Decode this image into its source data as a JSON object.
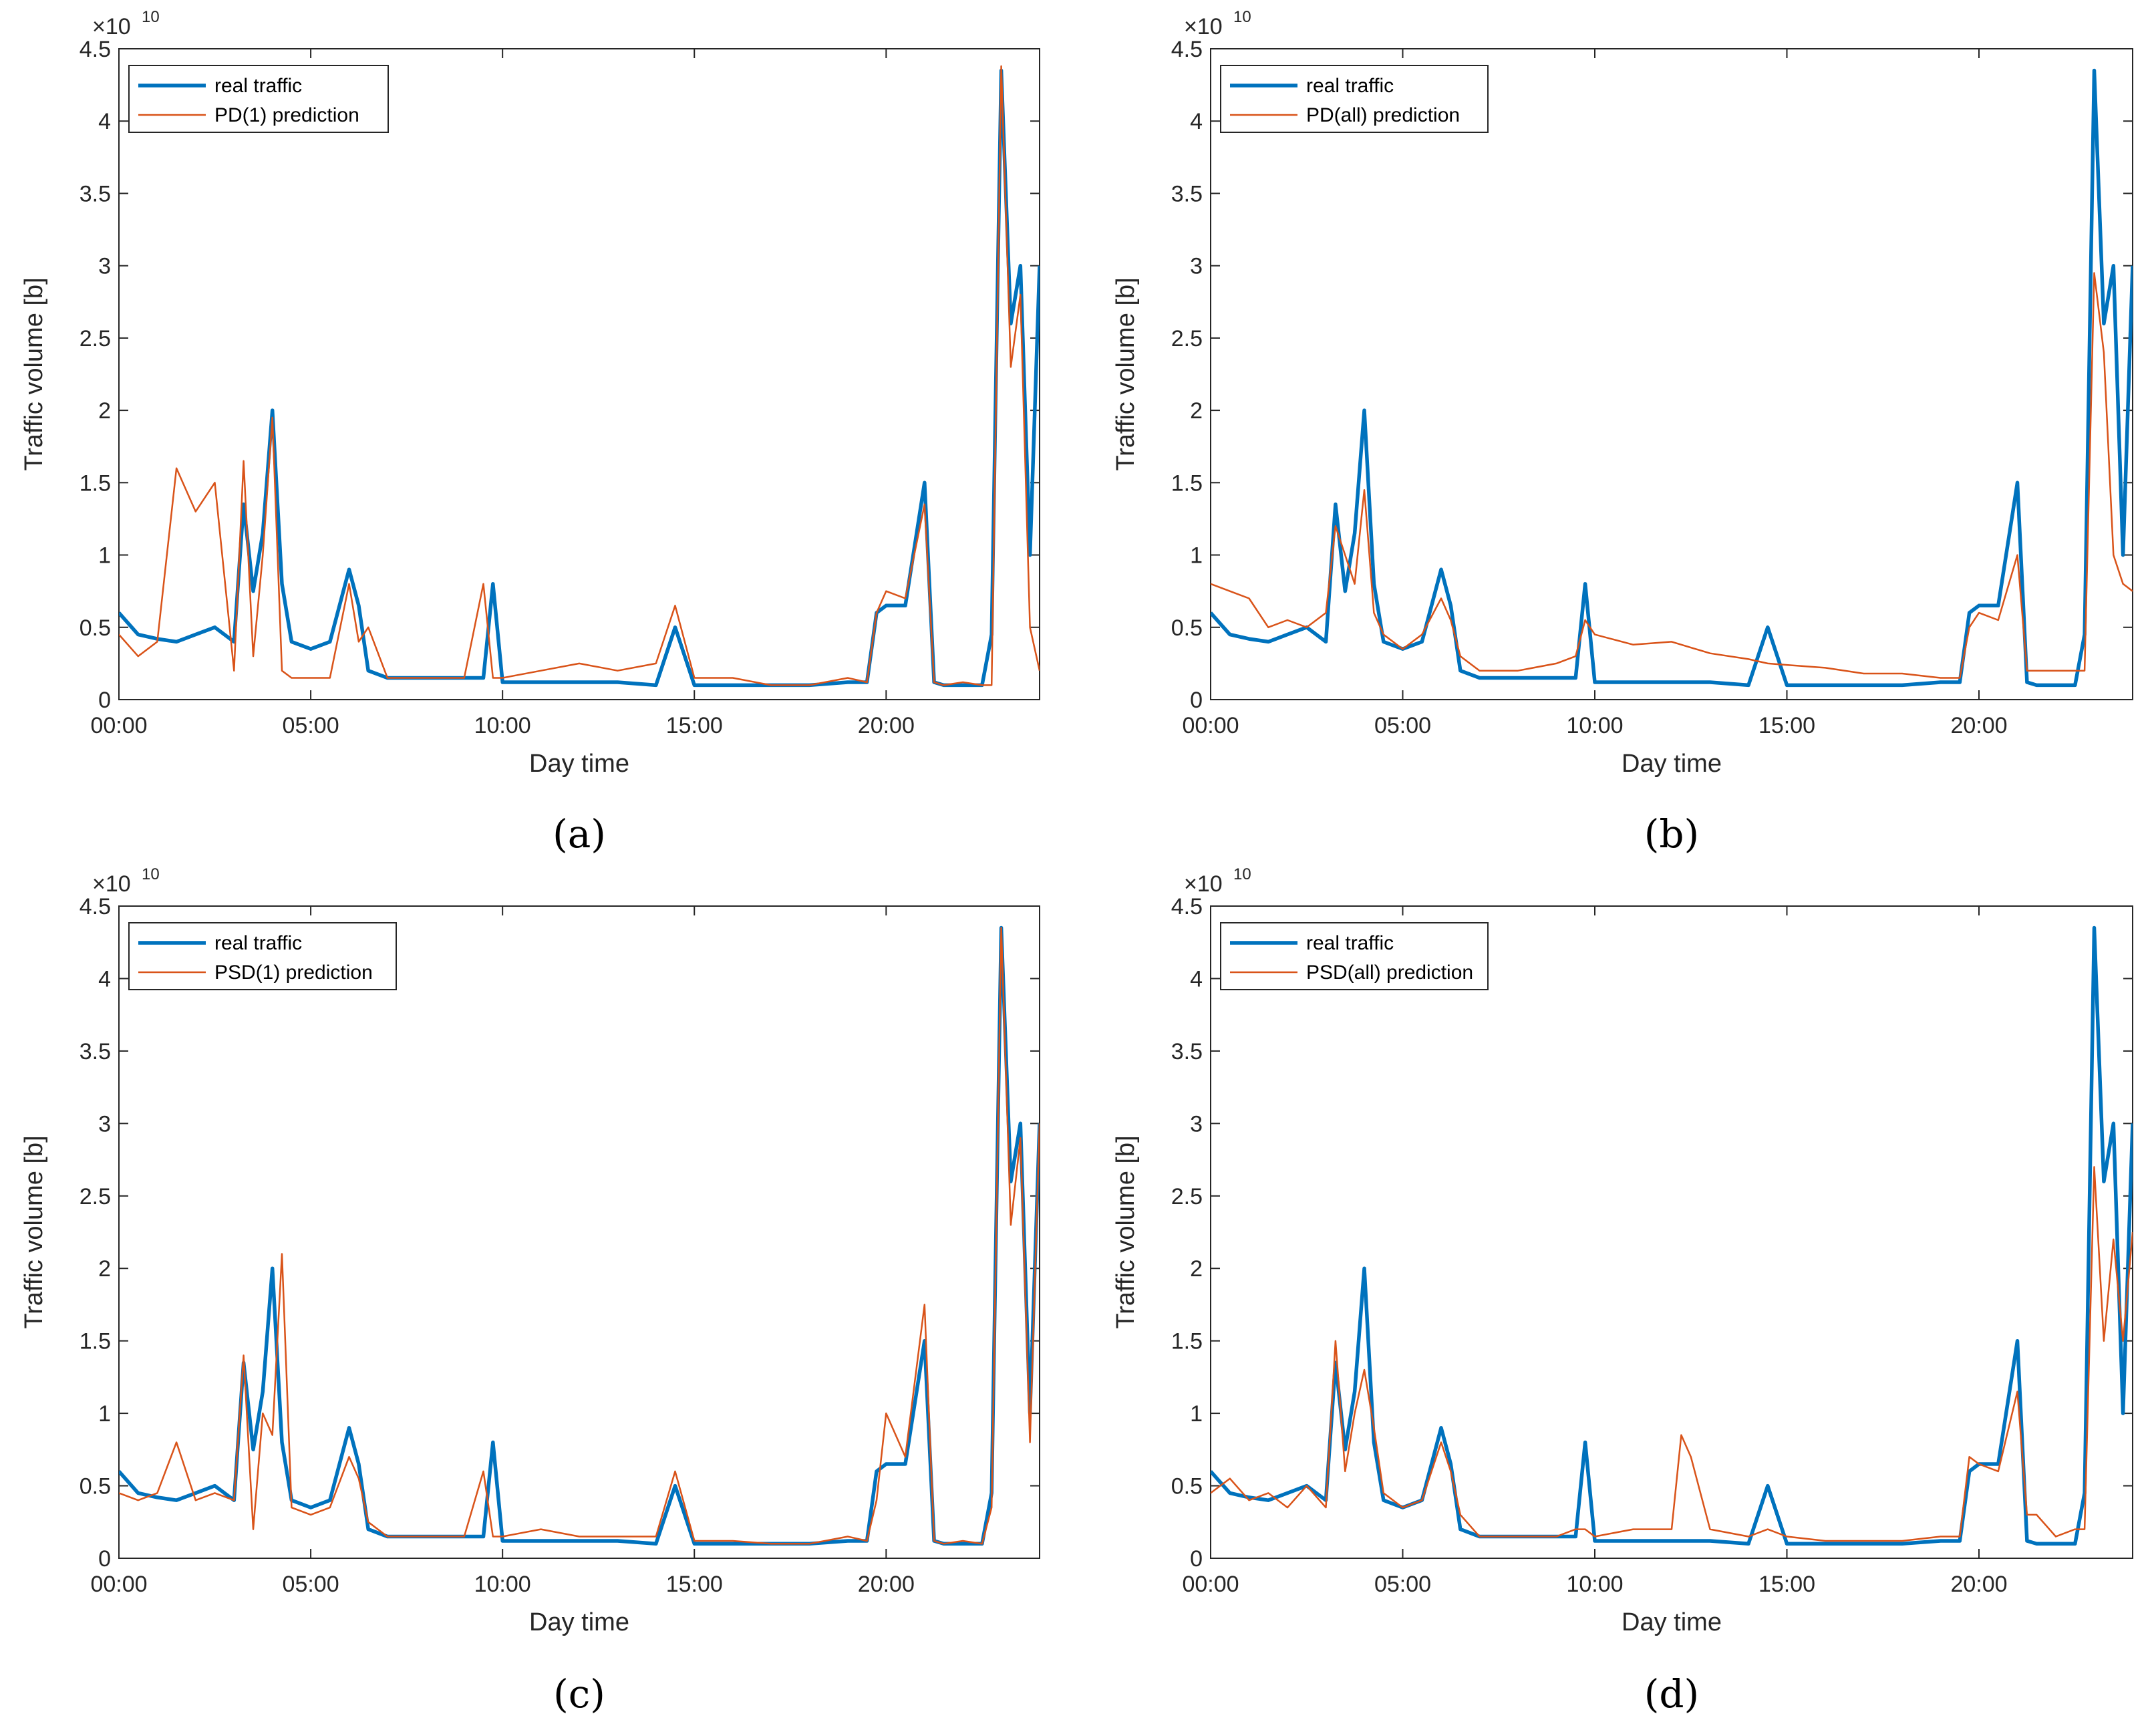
{
  "colors": {
    "real": "#0072BD",
    "pred": "#D95319",
    "axis": "#262626"
  },
  "chart_data": [
    {
      "type": "line",
      "panel_label": "(a)",
      "panel_letter": "a",
      "xlabel": "Day time",
      "ylabel": "Traffic volume [b]",
      "exponent_base": "×10",
      "exponent_power": "10",
      "xlim": [
        0,
        24
      ],
      "ylim": [
        0,
        4.5
      ],
      "xticks": [
        0,
        5,
        10,
        15,
        20
      ],
      "xtick_labels": [
        "00:00",
        "05:00",
        "10:00",
        "15:00",
        "20:00"
      ],
      "yticks": [
        0,
        0.5,
        1,
        1.5,
        2,
        2.5,
        3,
        3.5,
        4,
        4.5
      ],
      "ytick_labels": [
        "0",
        "0.5",
        "1",
        "1.5",
        "2",
        "2.5",
        "3",
        "3.5",
        "4",
        "4.5"
      ],
      "legend": {
        "placement": "top-left",
        "entries": [
          "real traffic",
          "PD(1) prediction"
        ]
      },
      "x": [
        0,
        0.5,
        1,
        1.5,
        2,
        2.5,
        3,
        3.25,
        3.5,
        3.75,
        4,
        4.25,
        4.5,
        5,
        5.5,
        6,
        6.25,
        6.5,
        7,
        8,
        9,
        9.5,
        9.75,
        10,
        11,
        12,
        13,
        14,
        14.5,
        15,
        16,
        17,
        18,
        19,
        19.5,
        19.75,
        20,
        20.5,
        21,
        21.25,
        21.5,
        22,
        22.5,
        22.75,
        23,
        23.25,
        23.5,
        23.75,
        24
      ],
      "series": [
        {
          "name": "real traffic",
          "values": [
            0.6,
            0.45,
            0.42,
            0.4,
            0.45,
            0.5,
            0.4,
            1.35,
            0.75,
            1.15,
            2.0,
            0.8,
            0.4,
            0.35,
            0.4,
            0.9,
            0.65,
            0.2,
            0.15,
            0.15,
            0.15,
            0.15,
            0.8,
            0.12,
            0.12,
            0.12,
            0.12,
            0.1,
            0.5,
            0.1,
            0.1,
            0.1,
            0.1,
            0.12,
            0.12,
            0.6,
            0.65,
            0.65,
            1.5,
            0.12,
            0.1,
            0.1,
            0.1,
            0.45,
            4.35,
            2.6,
            3.0,
            1.0,
            3.0
          ]
        },
        {
          "name": "PD(1) prediction",
          "values": [
            0.45,
            0.3,
            0.4,
            1.6,
            1.3,
            1.5,
            0.2,
            1.65,
            0.3,
            1.0,
            1.95,
            0.2,
            0.15,
            0.15,
            0.15,
            0.8,
            0.4,
            0.5,
            0.15,
            0.15,
            0.15,
            0.8,
            0.15,
            0.15,
            0.2,
            0.25,
            0.2,
            0.25,
            0.65,
            0.15,
            0.15,
            0.1,
            0.1,
            0.15,
            0.12,
            0.6,
            0.75,
            0.7,
            1.35,
            0.12,
            0.1,
            0.12,
            0.1,
            0.1,
            4.38,
            2.3,
            2.8,
            0.5,
            0.2
          ]
        }
      ]
    },
    {
      "type": "line",
      "panel_label": "(b)",
      "panel_letter": "b",
      "xlabel": "Day time",
      "ylabel": "Traffic volume [b]",
      "exponent_base": "×10",
      "exponent_power": "10",
      "xlim": [
        0,
        24
      ],
      "ylim": [
        0,
        4.5
      ],
      "xticks": [
        0,
        5,
        10,
        15,
        20
      ],
      "xtick_labels": [
        "00:00",
        "05:00",
        "10:00",
        "15:00",
        "20:00"
      ],
      "yticks": [
        0,
        0.5,
        1,
        1.5,
        2,
        2.5,
        3,
        3.5,
        4,
        4.5
      ],
      "ytick_labels": [
        "0",
        "0.5",
        "1",
        "1.5",
        "2",
        "2.5",
        "3",
        "3.5",
        "4",
        "4.5"
      ],
      "legend": {
        "placement": "top-left",
        "entries": [
          "real traffic",
          "PD(all) prediction"
        ]
      },
      "x": [
        0,
        0.5,
        1,
        1.5,
        2,
        2.5,
        3,
        3.25,
        3.5,
        3.75,
        4,
        4.25,
        4.5,
        5,
        5.5,
        6,
        6.25,
        6.5,
        7,
        8,
        9,
        9.5,
        9.75,
        10,
        11,
        12,
        13,
        14,
        14.5,
        15,
        16,
        17,
        18,
        19,
        19.5,
        19.75,
        20,
        20.5,
        21,
        21.25,
        21.5,
        22,
        22.5,
        22.75,
        23,
        23.25,
        23.5,
        23.75,
        24
      ],
      "series": [
        {
          "name": "real traffic",
          "values": [
            0.6,
            0.45,
            0.42,
            0.4,
            0.45,
            0.5,
            0.4,
            1.35,
            0.75,
            1.15,
            2.0,
            0.8,
            0.4,
            0.35,
            0.4,
            0.9,
            0.65,
            0.2,
            0.15,
            0.15,
            0.15,
            0.15,
            0.8,
            0.12,
            0.12,
            0.12,
            0.12,
            0.1,
            0.5,
            0.1,
            0.1,
            0.1,
            0.1,
            0.12,
            0.12,
            0.6,
            0.65,
            0.65,
            1.5,
            0.12,
            0.1,
            0.1,
            0.1,
            0.45,
            4.35,
            2.6,
            3.0,
            1.0,
            3.0
          ]
        },
        {
          "name": "PD(all) prediction",
          "values": [
            0.8,
            0.75,
            0.7,
            0.5,
            0.55,
            0.5,
            0.6,
            1.2,
            1.0,
            0.8,
            1.45,
            0.6,
            0.45,
            0.35,
            0.45,
            0.7,
            0.55,
            0.3,
            0.2,
            0.2,
            0.25,
            0.3,
            0.55,
            0.45,
            0.38,
            0.4,
            0.32,
            0.28,
            0.25,
            0.24,
            0.22,
            0.18,
            0.18,
            0.15,
            0.15,
            0.5,
            0.6,
            0.55,
            1.0,
            0.2,
            0.2,
            0.2,
            0.2,
            0.2,
            2.95,
            2.4,
            1.0,
            0.8,
            0.75
          ]
        }
      ]
    },
    {
      "type": "line",
      "panel_label": "(c)",
      "panel_letter": "c",
      "xlabel": "Day time",
      "ylabel": "Traffic volume [b]",
      "exponent_base": "×10",
      "exponent_power": "10",
      "xlim": [
        0,
        24
      ],
      "ylim": [
        0,
        4.5
      ],
      "xticks": [
        0,
        5,
        10,
        15,
        20
      ],
      "xtick_labels": [
        "00:00",
        "05:00",
        "10:00",
        "15:00",
        "20:00"
      ],
      "yticks": [
        0,
        0.5,
        1,
        1.5,
        2,
        2.5,
        3,
        3.5,
        4,
        4.5
      ],
      "ytick_labels": [
        "0",
        "0.5",
        "1",
        "1.5",
        "2",
        "2.5",
        "3",
        "3.5",
        "4",
        "4.5"
      ],
      "legend": {
        "placement": "top-left",
        "entries": [
          "real traffic",
          "PSD(1) prediction"
        ]
      },
      "x": [
        0,
        0.5,
        1,
        1.5,
        2,
        2.5,
        3,
        3.25,
        3.5,
        3.75,
        4,
        4.25,
        4.5,
        5,
        5.5,
        6,
        6.25,
        6.5,
        7,
        8,
        9,
        9.5,
        9.75,
        10,
        11,
        12,
        13,
        14,
        14.5,
        15,
        16,
        17,
        18,
        19,
        19.5,
        19.75,
        20,
        20.5,
        21,
        21.25,
        21.5,
        22,
        22.5,
        22.75,
        23,
        23.25,
        23.5,
        23.75,
        24
      ],
      "series": [
        {
          "name": "real traffic",
          "values": [
            0.6,
            0.45,
            0.42,
            0.4,
            0.45,
            0.5,
            0.4,
            1.35,
            0.75,
            1.15,
            2.0,
            0.8,
            0.4,
            0.35,
            0.4,
            0.9,
            0.65,
            0.2,
            0.15,
            0.15,
            0.15,
            0.15,
            0.8,
            0.12,
            0.12,
            0.12,
            0.12,
            0.1,
            0.5,
            0.1,
            0.1,
            0.1,
            0.1,
            0.12,
            0.12,
            0.6,
            0.65,
            0.65,
            1.5,
            0.12,
            0.1,
            0.1,
            0.1,
            0.45,
            4.35,
            2.6,
            3.0,
            1.0,
            3.0
          ]
        },
        {
          "name": "PSD(1) prediction",
          "values": [
            0.45,
            0.4,
            0.45,
            0.8,
            0.4,
            0.45,
            0.4,
            1.4,
            0.2,
            1.0,
            0.85,
            2.1,
            0.35,
            0.3,
            0.35,
            0.7,
            0.55,
            0.25,
            0.15,
            0.15,
            0.15,
            0.6,
            0.15,
            0.15,
            0.2,
            0.15,
            0.15,
            0.15,
            0.6,
            0.12,
            0.12,
            0.1,
            0.1,
            0.15,
            0.12,
            0.4,
            1.0,
            0.7,
            1.75,
            0.12,
            0.1,
            0.12,
            0.1,
            0.35,
            4.35,
            2.3,
            2.9,
            0.8,
            3.0
          ]
        }
      ]
    },
    {
      "type": "line",
      "panel_label": "(d)",
      "panel_letter": "d",
      "xlabel": "Day time",
      "ylabel": "Traffic volume [b]",
      "exponent_base": "×10",
      "exponent_power": "10",
      "xlim": [
        0,
        24
      ],
      "ylim": [
        0,
        4.5
      ],
      "xticks": [
        0,
        5,
        10,
        15,
        20
      ],
      "xtick_labels": [
        "00:00",
        "05:00",
        "10:00",
        "15:00",
        "20:00"
      ],
      "yticks": [
        0,
        0.5,
        1,
        1.5,
        2,
        2.5,
        3,
        3.5,
        4,
        4.5
      ],
      "ytick_labels": [
        "0",
        "0.5",
        "1",
        "1.5",
        "2",
        "2.5",
        "3",
        "3.5",
        "4",
        "4.5"
      ],
      "legend": {
        "placement": "top-left",
        "entries": [
          "real traffic",
          "PSD(all) prediction"
        ]
      },
      "x": [
        0,
        0.5,
        1,
        1.5,
        2,
        2.5,
        3,
        3.25,
        3.5,
        3.75,
        4,
        4.25,
        4.5,
        5,
        5.5,
        6,
        6.25,
        6.5,
        7,
        8,
        9,
        9.5,
        9.75,
        10,
        11,
        12,
        12.25,
        12.5,
        13,
        14,
        14.5,
        15,
        16,
        17,
        18,
        19,
        19.5,
        19.75,
        20,
        20.5,
        21,
        21.25,
        21.5,
        22,
        22.5,
        22.75,
        23,
        23.25,
        23.5,
        23.75,
        24
      ],
      "series": [
        {
          "name": "real traffic",
          "values": [
            0.6,
            0.45,
            0.42,
            0.4,
            0.45,
            0.5,
            0.4,
            1.35,
            0.75,
            1.15,
            2.0,
            0.8,
            0.4,
            0.35,
            0.4,
            0.9,
            0.65,
            0.2,
            0.15,
            0.15,
            0.15,
            0.15,
            0.8,
            0.12,
            0.12,
            0.12,
            0.12,
            0.12,
            0.12,
            0.1,
            0.5,
            0.1,
            0.1,
            0.1,
            0.1,
            0.12,
            0.12,
            0.6,
            0.65,
            0.65,
            1.5,
            0.12,
            0.1,
            0.1,
            0.1,
            0.45,
            4.35,
            2.6,
            3.0,
            1.0,
            3.0
          ]
        },
        {
          "name": "PSD(all) prediction",
          "values": [
            0.45,
            0.55,
            0.4,
            0.45,
            0.35,
            0.5,
            0.35,
            1.5,
            0.6,
            1.0,
            1.3,
            0.9,
            0.45,
            0.35,
            0.4,
            0.8,
            0.6,
            0.3,
            0.15,
            0.15,
            0.15,
            0.2,
            0.2,
            0.15,
            0.2,
            0.2,
            0.85,
            0.7,
            0.2,
            0.15,
            0.2,
            0.15,
            0.12,
            0.12,
            0.12,
            0.15,
            0.15,
            0.7,
            0.65,
            0.6,
            1.15,
            0.3,
            0.3,
            0.15,
            0.2,
            0.2,
            2.7,
            1.5,
            2.2,
            1.5,
            2.25
          ]
        }
      ]
    }
  ]
}
